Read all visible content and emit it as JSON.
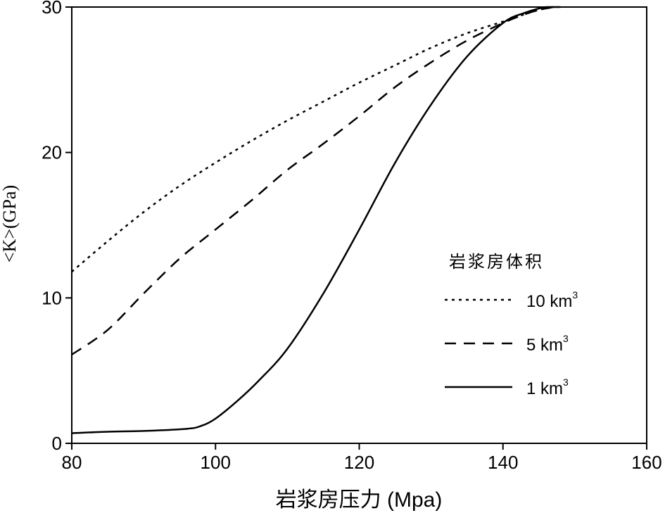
{
  "chart_data": {
    "type": "line",
    "title": "",
    "xlabel": "岩浆房压力 (Mpa)",
    "ylabel": "<K>(GPa)",
    "xlim": [
      80,
      160
    ],
    "ylim": [
      0,
      30
    ],
    "xticks": [
      "80",
      "100",
      "120",
      "140",
      "160"
    ],
    "yticks": [
      "0",
      "10",
      "20",
      "30"
    ],
    "grid": false,
    "legend": {
      "title": "岩浆房体积",
      "placement": "right",
      "entries": [
        {
          "series": "10 km3",
          "text": "10 km",
          "sup": "3",
          "style": "dotted"
        },
        {
          "series": "5 km3",
          "text": "5 km",
          "sup": "3",
          "style": "dashed"
        },
        {
          "series": "1 km3",
          "text": "1 km",
          "sup": "3",
          "style": "solid"
        }
      ]
    },
    "series": [
      {
        "name": "10 km3",
        "style": "dotted",
        "points": [
          [
            80,
            11.8
          ],
          [
            85,
            13.9
          ],
          [
            90,
            15.9
          ],
          [
            95,
            17.7
          ],
          [
            100,
            19.3
          ],
          [
            105,
            20.8
          ],
          [
            110,
            22.2
          ],
          [
            115,
            23.5
          ],
          [
            120,
            24.8
          ],
          [
            125,
            26.0
          ],
          [
            130,
            27.2
          ],
          [
            135,
            28.2
          ],
          [
            140,
            29.0
          ],
          [
            143,
            29.5
          ],
          [
            145,
            29.8
          ],
          [
            147,
            30.0
          ]
        ]
      },
      {
        "name": "5 km3",
        "style": "dashed",
        "points": [
          [
            80,
            6.1
          ],
          [
            85,
            7.8
          ],
          [
            90,
            10.3
          ],
          [
            95,
            12.7
          ],
          [
            100,
            14.7
          ],
          [
            105,
            16.7
          ],
          [
            110,
            18.8
          ],
          [
            115,
            20.6
          ],
          [
            120,
            22.5
          ],
          [
            125,
            24.5
          ],
          [
            130,
            26.2
          ],
          [
            135,
            27.7
          ],
          [
            140,
            28.9
          ],
          [
            143,
            29.5
          ],
          [
            145,
            29.8
          ],
          [
            147,
            30.0
          ]
        ]
      },
      {
        "name": "1 km3",
        "style": "solid",
        "points": [
          [
            80,
            0.7
          ],
          [
            85,
            0.8
          ],
          [
            90,
            0.85
          ],
          [
            96,
            1.0
          ],
          [
            98,
            1.2
          ],
          [
            100,
            1.7
          ],
          [
            103,
            2.9
          ],
          [
            106,
            4.3
          ],
          [
            110,
            6.5
          ],
          [
            115,
            10.3
          ],
          [
            120,
            14.7
          ],
          [
            125,
            19.3
          ],
          [
            130,
            23.3
          ],
          [
            135,
            26.6
          ],
          [
            140,
            28.9
          ],
          [
            143,
            29.6
          ],
          [
            146,
            30.0
          ],
          [
            148,
            30.0
          ]
        ]
      }
    ]
  }
}
